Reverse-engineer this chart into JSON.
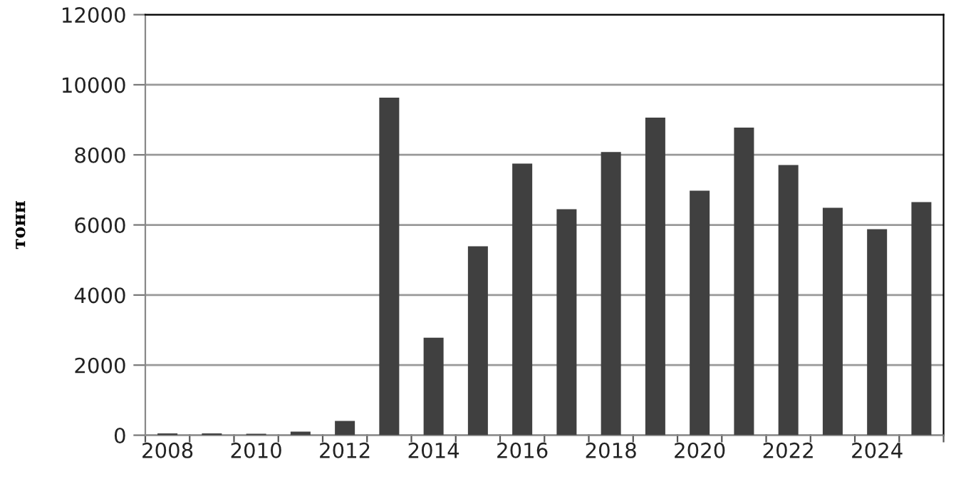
{
  "chart_data": {
    "type": "bar",
    "ylabel": "тонн",
    "categories": [
      "2008",
      null,
      "2010",
      null,
      "2012",
      null,
      "2014",
      null,
      "2016",
      null,
      "2018",
      null,
      "2020",
      null,
      "2022",
      null,
      "2024",
      null
    ],
    "values": [
      50,
      50,
      40,
      100,
      410,
      9630,
      2780,
      5390,
      7750,
      6450,
      8080,
      9060,
      6980,
      8780,
      7710,
      6490,
      5880,
      6650
    ],
    "color": "#404040",
    "ylim": [
      0,
      12000
    ],
    "yticks": [
      0,
      2000,
      4000,
      6000,
      8000,
      10000,
      12000
    ],
    "grid": "y",
    "legend": false
  }
}
